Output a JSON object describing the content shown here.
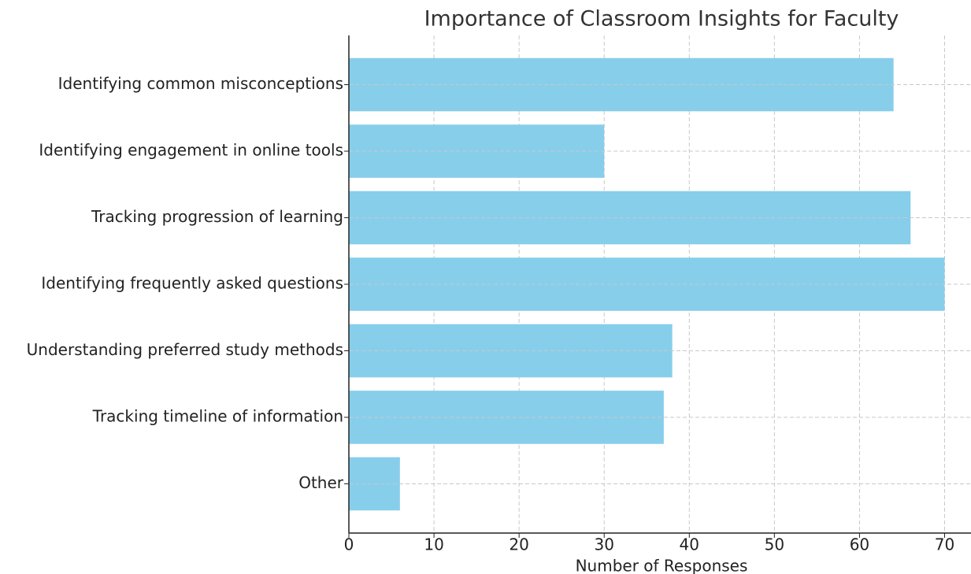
{
  "chart_data": {
    "type": "barh",
    "title": "Importance of Classroom Insights for Faculty",
    "xlabel": "Number of Responses",
    "categories": [
      "Identifying common misconceptions",
      "Identifying engagement in online tools",
      "Tracking progression of learning",
      "Identifying frequently asked questions",
      "Understanding preferred study methods",
      "Tracking timeline of information",
      "Other"
    ],
    "values": [
      64,
      30,
      66,
      70,
      38,
      37,
      6
    ],
    "color": "#87ceeb",
    "xlim": [
      0,
      73.1
    ],
    "xticks": [
      0,
      10,
      20,
      30,
      40,
      50,
      60,
      70
    ],
    "grid": true
  }
}
